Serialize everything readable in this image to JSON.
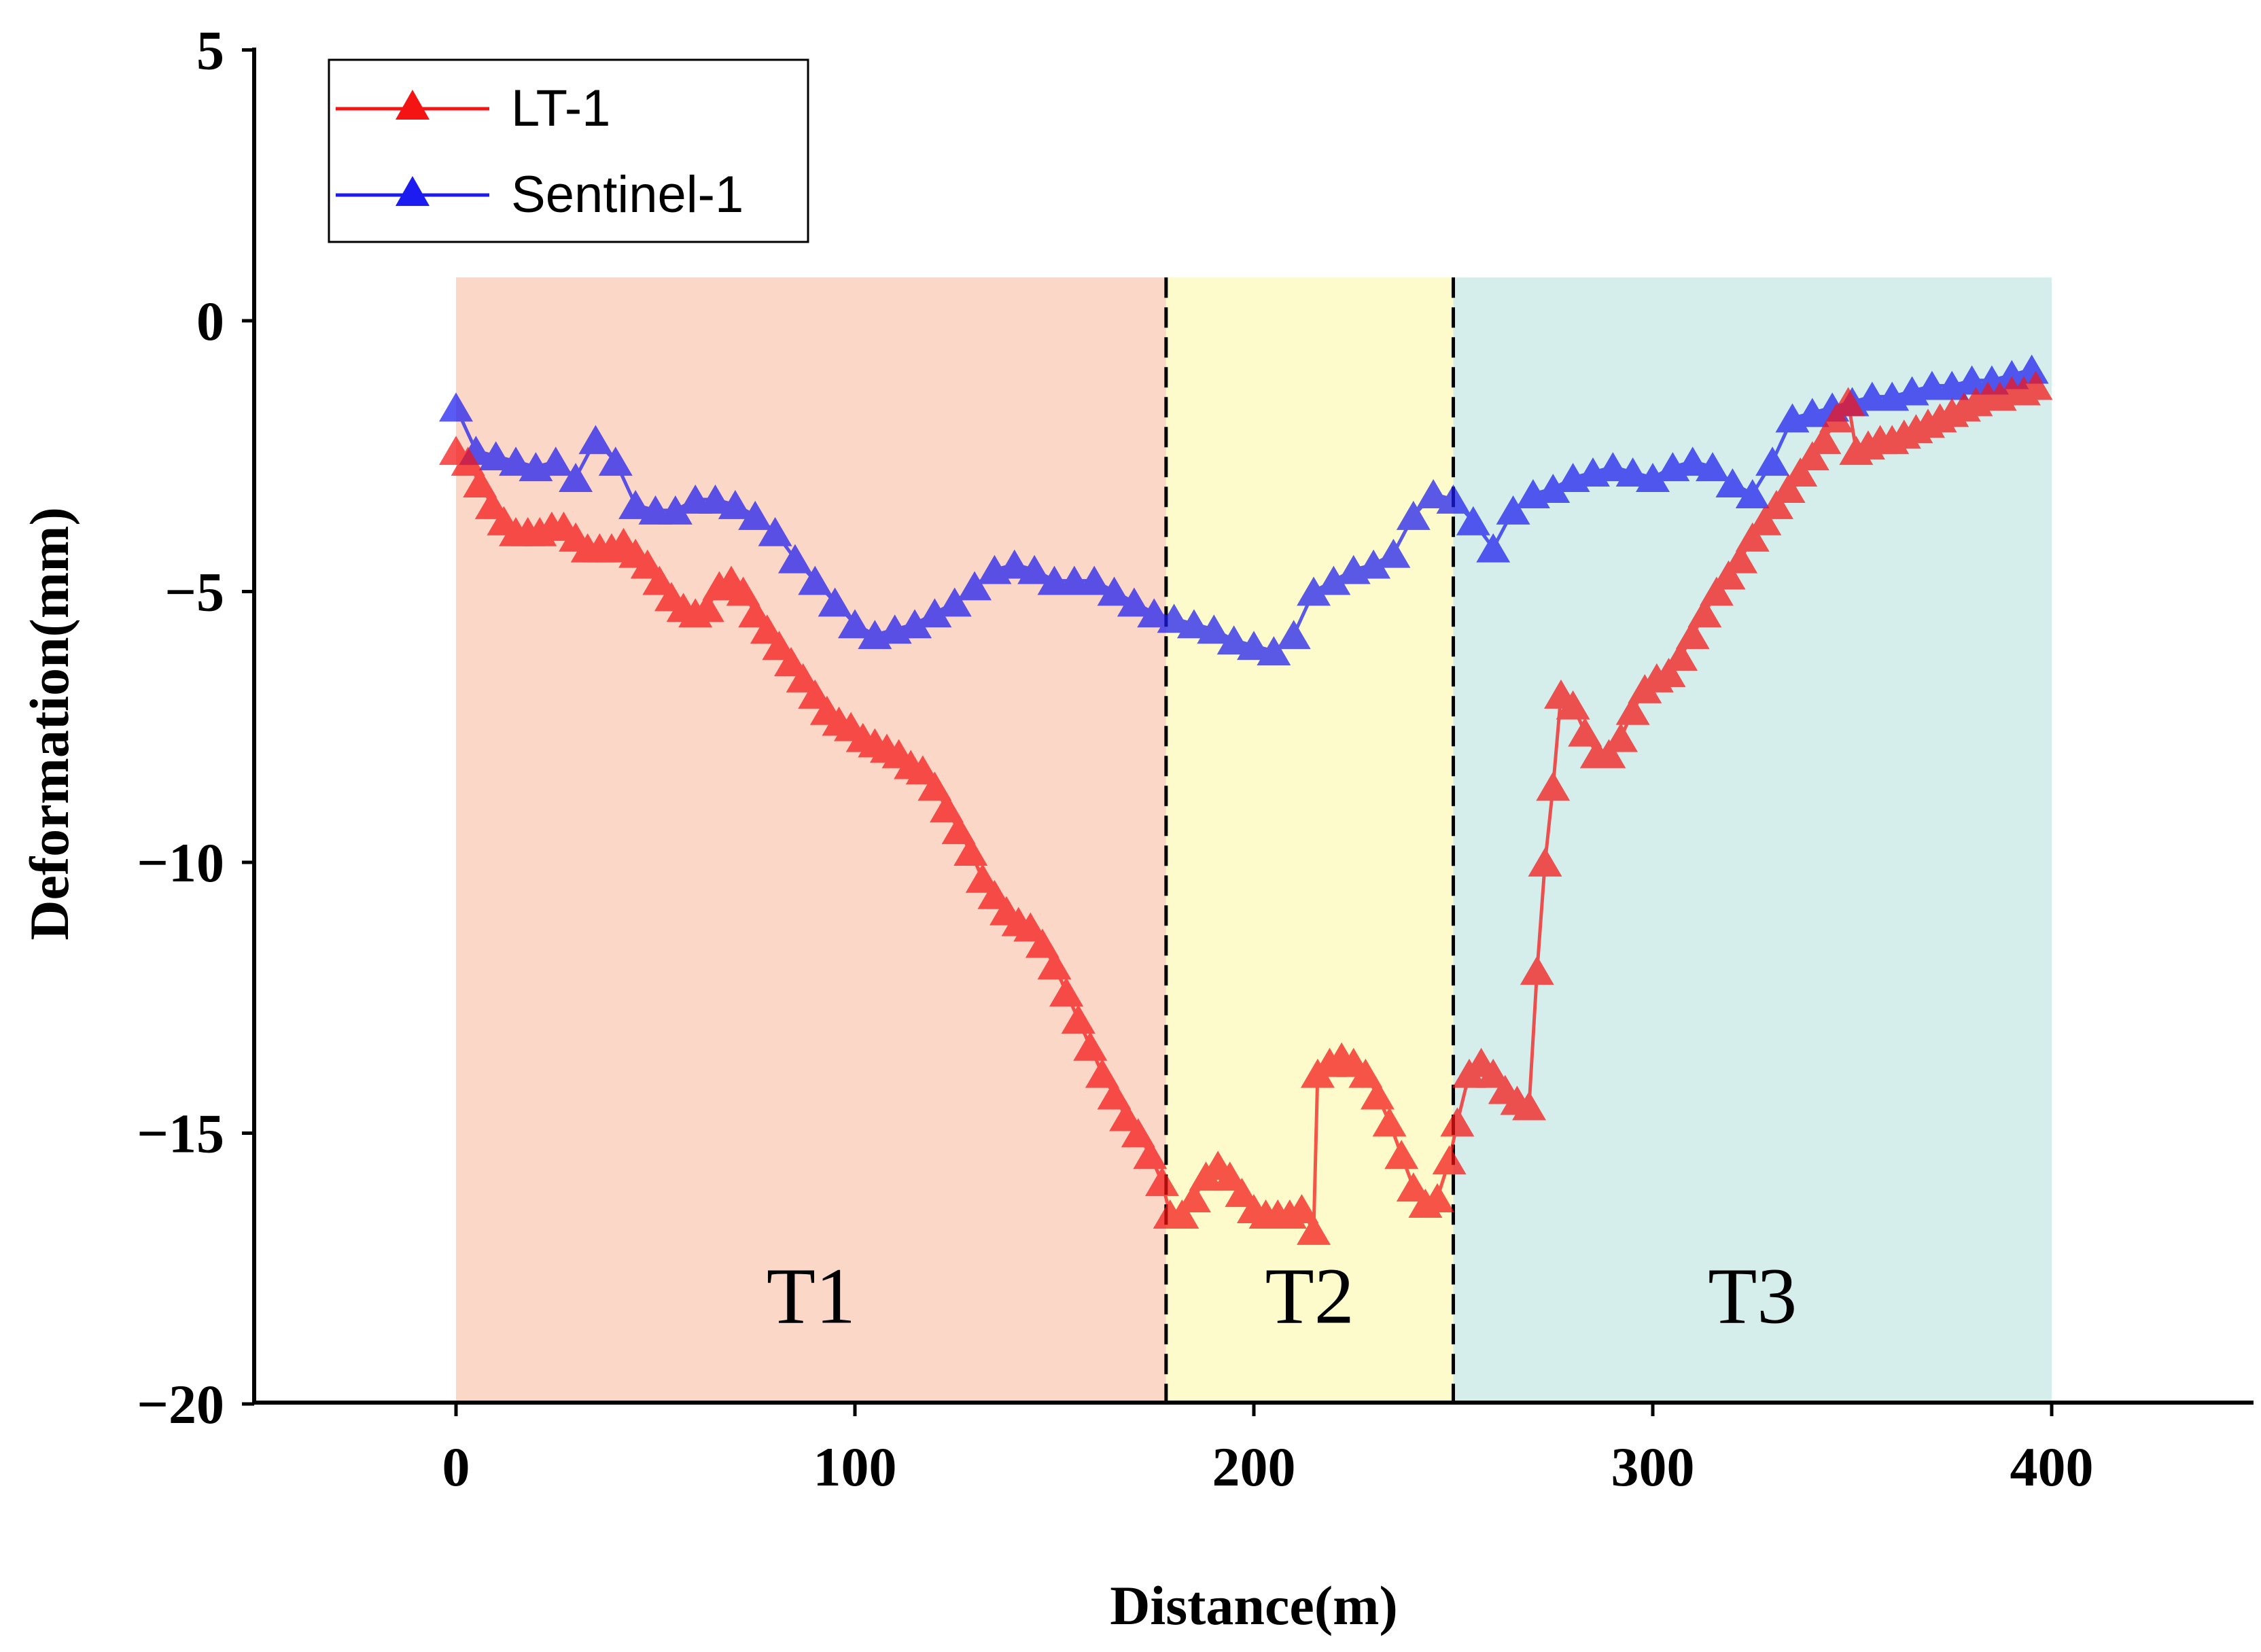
{
  "chart_data": {
    "type": "line",
    "title": "",
    "xlabel": "Distance(m)",
    "ylabel": "Deformation(mm)",
    "xlim": [
      -50,
      450
    ],
    "ylim": [
      -20,
      5
    ],
    "xticks": [
      0,
      100,
      200,
      300,
      400
    ],
    "yticks": [
      5,
      0,
      -5,
      -10,
      -15,
      -20
    ],
    "xtick_labels": [
      "0",
      "100",
      "200",
      "300",
      "400"
    ],
    "ytick_labels": [
      "5",
      "0",
      "−5",
      "−10",
      "−15",
      "−20"
    ],
    "legend": {
      "placement": "top-left",
      "entries": [
        "LT-1",
        "Sentinel-1"
      ]
    },
    "zones": [
      {
        "label": "T1",
        "x_start": 0,
        "x_end": 178,
        "y_top": 0.8,
        "color": "#fbd7c8"
      },
      {
        "label": "T2",
        "x_start": 178,
        "x_end": 250,
        "y_top": 0.8,
        "color": "#fdfbcb"
      },
      {
        "label": "T3",
        "x_start": 250,
        "x_end": 400,
        "y_top": 0.8,
        "color": "#d5eeec"
      }
    ],
    "zone_label_y": -18.5,
    "boundaries": [
      178,
      250
    ],
    "series": [
      {
        "name": "Sentinel-1",
        "color": "#1c1cf0",
        "points": [
          [
            0,
            -1.6
          ],
          [
            5,
            -2.4
          ],
          [
            10,
            -2.5
          ],
          [
            15,
            -2.6
          ],
          [
            20,
            -2.7
          ],
          [
            25,
            -2.6
          ],
          [
            30,
            -2.9
          ],
          [
            35,
            -2.2
          ],
          [
            40,
            -2.6
          ],
          [
            45,
            -3.4
          ],
          [
            50,
            -3.5
          ],
          [
            55,
            -3.5
          ],
          [
            60,
            -3.3
          ],
          [
            65,
            -3.3
          ],
          [
            70,
            -3.4
          ],
          [
            75,
            -3.6
          ],
          [
            80,
            -3.9
          ],
          [
            85,
            -4.4
          ],
          [
            90,
            -4.8
          ],
          [
            95,
            -5.2
          ],
          [
            100,
            -5.6
          ],
          [
            105,
            -5.8
          ],
          [
            110,
            -5.7
          ],
          [
            115,
            -5.6
          ],
          [
            120,
            -5.4
          ],
          [
            125,
            -5.2
          ],
          [
            130,
            -4.9
          ],
          [
            135,
            -4.6
          ],
          [
            140,
            -4.5
          ],
          [
            145,
            -4.6
          ],
          [
            150,
            -4.8
          ],
          [
            155,
            -4.8
          ],
          [
            160,
            -4.8
          ],
          [
            165,
            -5.0
          ],
          [
            170,
            -5.2
          ],
          [
            175,
            -5.4
          ],
          [
            180,
            -5.5
          ],
          [
            185,
            -5.6
          ],
          [
            190,
            -5.7
          ],
          [
            195,
            -5.9
          ],
          [
            200,
            -6.0
          ],
          [
            205,
            -6.1
          ],
          [
            210,
            -5.8
          ],
          [
            215,
            -5.0
          ],
          [
            220,
            -4.8
          ],
          [
            225,
            -4.6
          ],
          [
            230,
            -4.5
          ],
          [
            235,
            -4.3
          ],
          [
            240,
            -3.6
          ],
          [
            245,
            -3.2
          ],
          [
            250,
            -3.3
          ],
          [
            255,
            -3.7
          ],
          [
            260,
            -4.2
          ],
          [
            265,
            -3.5
          ],
          [
            270,
            -3.2
          ],
          [
            275,
            -3.1
          ],
          [
            280,
            -2.9
          ],
          [
            285,
            -2.8
          ],
          [
            290,
            -2.7
          ],
          [
            295,
            -2.8
          ],
          [
            300,
            -2.9
          ],
          [
            305,
            -2.7
          ],
          [
            310,
            -2.6
          ],
          [
            315,
            -2.7
          ],
          [
            320,
            -3.0
          ],
          [
            325,
            -3.2
          ],
          [
            330,
            -2.6
          ],
          [
            335,
            -1.8
          ],
          [
            340,
            -1.7
          ],
          [
            345,
            -1.6
          ],
          [
            350,
            -1.5
          ],
          [
            355,
            -1.4
          ],
          [
            360,
            -1.4
          ],
          [
            365,
            -1.3
          ],
          [
            370,
            -1.2
          ],
          [
            375,
            -1.2
          ],
          [
            380,
            -1.1
          ],
          [
            385,
            -1.1
          ],
          [
            390,
            -1.0
          ],
          [
            395,
            -0.9
          ]
        ]
      },
      {
        "name": "LT-1",
        "color": "#f41414",
        "points": [
          [
            0,
            -2.4
          ],
          [
            3,
            -2.6
          ],
          [
            6,
            -3.0
          ],
          [
            9,
            -3.4
          ],
          [
            12,
            -3.7
          ],
          [
            15,
            -3.9
          ],
          [
            18,
            -3.9
          ],
          [
            21,
            -3.9
          ],
          [
            24,
            -3.8
          ],
          [
            27,
            -3.8
          ],
          [
            30,
            -4.0
          ],
          [
            33,
            -4.2
          ],
          [
            36,
            -4.2
          ],
          [
            39,
            -4.2
          ],
          [
            42,
            -4.1
          ],
          [
            45,
            -4.3
          ],
          [
            48,
            -4.5
          ],
          [
            51,
            -4.8
          ],
          [
            54,
            -5.1
          ],
          [
            57,
            -5.3
          ],
          [
            60,
            -5.4
          ],
          [
            63,
            -5.3
          ],
          [
            66,
            -4.9
          ],
          [
            69,
            -4.8
          ],
          [
            72,
            -5.0
          ],
          [
            75,
            -5.4
          ],
          [
            78,
            -5.7
          ],
          [
            81,
            -6.0
          ],
          [
            84,
            -6.3
          ],
          [
            87,
            -6.6
          ],
          [
            90,
            -6.9
          ],
          [
            93,
            -7.2
          ],
          [
            96,
            -7.4
          ],
          [
            99,
            -7.5
          ],
          [
            102,
            -7.7
          ],
          [
            105,
            -7.8
          ],
          [
            108,
            -7.9
          ],
          [
            111,
            -8.0
          ],
          [
            114,
            -8.2
          ],
          [
            117,
            -8.3
          ],
          [
            120,
            -8.6
          ],
          [
            123,
            -9.0
          ],
          [
            126,
            -9.4
          ],
          [
            129,
            -9.8
          ],
          [
            132,
            -10.3
          ],
          [
            135,
            -10.6
          ],
          [
            138,
            -10.9
          ],
          [
            141,
            -11.1
          ],
          [
            144,
            -11.2
          ],
          [
            147,
            -11.5
          ],
          [
            150,
            -11.9
          ],
          [
            153,
            -12.4
          ],
          [
            156,
            -12.9
          ],
          [
            159,
            -13.4
          ],
          [
            162,
            -13.9
          ],
          [
            165,
            -14.3
          ],
          [
            168,
            -14.7
          ],
          [
            171,
            -15.0
          ],
          [
            174,
            -15.4
          ],
          [
            177,
            -15.9
          ],
          [
            179,
            -16.5
          ],
          [
            182,
            -16.5
          ],
          [
            185,
            -16.2
          ],
          [
            188,
            -15.8
          ],
          [
            191,
            -15.6
          ],
          [
            194,
            -15.8
          ],
          [
            197,
            -16.1
          ],
          [
            200,
            -16.4
          ],
          [
            203,
            -16.5
          ],
          [
            206,
            -16.5
          ],
          [
            209,
            -16.5
          ],
          [
            212,
            -16.4
          ],
          [
            215,
            -16.8
          ],
          [
            216,
            -13.9
          ],
          [
            219,
            -13.7
          ],
          [
            222,
            -13.6
          ],
          [
            225,
            -13.7
          ],
          [
            228,
            -13.9
          ],
          [
            231,
            -14.3
          ],
          [
            234,
            -14.8
          ],
          [
            237,
            -15.4
          ],
          [
            240,
            -16.0
          ],
          [
            243,
            -16.3
          ],
          [
            246,
            -16.2
          ],
          [
            249,
            -15.5
          ],
          [
            251,
            -14.8
          ],
          [
            254,
            -13.9
          ],
          [
            257,
            -13.7
          ],
          [
            260,
            -13.9
          ],
          [
            263,
            -14.2
          ],
          [
            266,
            -14.4
          ],
          [
            269,
            -14.5
          ],
          [
            271,
            -12.0
          ],
          [
            273,
            -10.0
          ],
          [
            275,
            -8.6
          ],
          [
            277,
            -6.9
          ],
          [
            280,
            -7.1
          ],
          [
            283,
            -7.6
          ],
          [
            286,
            -8.0
          ],
          [
            289,
            -8.0
          ],
          [
            292,
            -7.7
          ],
          [
            295,
            -7.2
          ],
          [
            298,
            -6.8
          ],
          [
            301,
            -6.6
          ],
          [
            304,
            -6.5
          ],
          [
            307,
            -6.2
          ],
          [
            310,
            -5.8
          ],
          [
            313,
            -5.4
          ],
          [
            316,
            -5.0
          ],
          [
            319,
            -4.7
          ],
          [
            322,
            -4.4
          ],
          [
            325,
            -4.0
          ],
          [
            328,
            -3.7
          ],
          [
            331,
            -3.4
          ],
          [
            334,
            -3.1
          ],
          [
            337,
            -2.8
          ],
          [
            340,
            -2.5
          ],
          [
            343,
            -2.2
          ],
          [
            346,
            -1.8
          ],
          [
            349,
            -1.5
          ],
          [
            351,
            -2.4
          ],
          [
            354,
            -2.3
          ],
          [
            357,
            -2.2
          ],
          [
            360,
            -2.2
          ],
          [
            363,
            -2.1
          ],
          [
            366,
            -2.0
          ],
          [
            369,
            -1.9
          ],
          [
            372,
            -1.8
          ],
          [
            375,
            -1.7
          ],
          [
            378,
            -1.6
          ],
          [
            381,
            -1.5
          ],
          [
            384,
            -1.4
          ],
          [
            387,
            -1.4
          ],
          [
            390,
            -1.3
          ],
          [
            393,
            -1.3
          ],
          [
            396,
            -1.2
          ]
        ]
      }
    ]
  }
}
